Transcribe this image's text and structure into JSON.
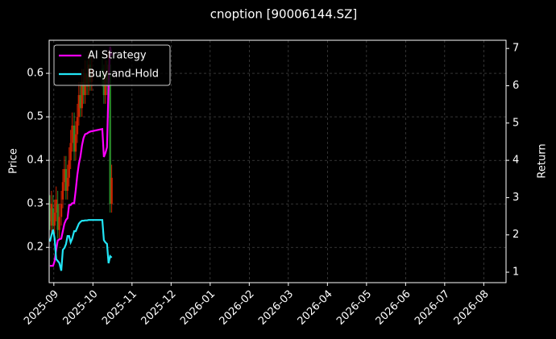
{
  "chart_data": {
    "type": "candlestick_returns",
    "title": "cnoption [90006144.SZ]",
    "ylabel": "Price",
    "y2label": "Return",
    "x": [
      -0.1,
      -0.06,
      -0.02,
      0.02,
      0.06,
      0.1,
      0.14,
      0.19,
      0.23,
      0.27,
      0.31,
      0.35,
      0.39,
      0.43,
      0.47,
      0.52,
      0.56,
      0.6,
      0.64,
      0.68,
      0.72,
      0.76,
      0.8,
      0.85,
      0.89,
      0.93,
      0.97,
      1.24,
      1.28,
      1.32,
      1.36,
      1.4,
      1.44,
      1.48
    ],
    "open": [
      0.29,
      0.25,
      0.29,
      0.25,
      0.28,
      0.3,
      0.24,
      0.27,
      0.31,
      0.35,
      0.38,
      0.33,
      0.36,
      0.4,
      0.44,
      0.48,
      0.42,
      0.46,
      0.5,
      0.55,
      0.52,
      0.58,
      0.55,
      0.6,
      0.57,
      0.62,
      0.58,
      0.61,
      0.59,
      0.55,
      0.6,
      0.57,
      0.62,
      0.3
    ],
    "high": [
      0.32,
      0.33,
      0.32,
      0.31,
      0.34,
      0.33,
      0.3,
      0.33,
      0.38,
      0.41,
      0.41,
      0.39,
      0.43,
      0.47,
      0.51,
      0.51,
      0.49,
      0.53,
      0.58,
      0.58,
      0.61,
      0.61,
      0.63,
      0.63,
      0.65,
      0.65,
      0.64,
      0.64,
      0.62,
      0.63,
      0.63,
      0.65,
      0.65,
      0.39
    ],
    "low": [
      0.24,
      0.23,
      0.23,
      0.23,
      0.26,
      0.22,
      0.22,
      0.25,
      0.29,
      0.33,
      0.31,
      0.31,
      0.34,
      0.38,
      0.42,
      0.4,
      0.4,
      0.44,
      0.48,
      0.5,
      0.5,
      0.53,
      0.53,
      0.55,
      0.55,
      0.56,
      0.56,
      0.57,
      0.53,
      0.53,
      0.55,
      0.55,
      0.28,
      0.28
    ],
    "close": [
      0.26,
      0.3,
      0.25,
      0.28,
      0.31,
      0.24,
      0.27,
      0.3,
      0.35,
      0.38,
      0.33,
      0.36,
      0.4,
      0.44,
      0.48,
      0.42,
      0.46,
      0.5,
      0.55,
      0.52,
      0.58,
      0.55,
      0.6,
      0.57,
      0.62,
      0.58,
      0.61,
      0.59,
      0.55,
      0.6,
      0.57,
      0.62,
      0.3,
      0.36
    ],
    "up_color": "#cc2200",
    "down_color": "#2a8a2a",
    "series": [
      {
        "name": "AI Strategy",
        "color": "#ff00ff",
        "axis": "y2",
        "values": [
          1.17,
          1.17,
          1.17,
          1.3,
          1.6,
          1.85,
          1.88,
          1.9,
          2.1,
          2.3,
          2.4,
          2.45,
          2.8,
          2.8,
          2.85,
          2.85,
          3.2,
          3.6,
          3.9,
          4.1,
          4.4,
          4.6,
          4.7,
          4.72,
          4.75,
          4.77,
          4.78,
          4.84,
          4.09,
          4.2,
          4.35,
          6.0,
          7.05,
          6.8
        ]
      },
      {
        "name": "Buy-and-Hold",
        "color": "#22e5f5",
        "axis": "y2",
        "values": [
          1.82,
          2.0,
          2.14,
          1.9,
          1.35,
          1.3,
          1.25,
          1.04,
          1.6,
          1.65,
          1.75,
          1.97,
          1.97,
          1.8,
          1.9,
          2.1,
          2.1,
          2.2,
          2.3,
          2.35,
          2.38,
          2.38,
          2.39,
          2.39,
          2.4,
          2.4,
          2.4,
          2.4,
          1.86,
          1.8,
          1.76,
          1.24,
          1.43,
          1.39
        ]
      }
    ],
    "xlim": [
      -0.12,
      11.57
    ],
    "xticks": [
      {
        "value": 0,
        "label": "2025-09"
      },
      {
        "value": 1,
        "label": "2025-10"
      },
      {
        "value": 2,
        "label": "2025-11"
      },
      {
        "value": 3,
        "label": "2025-12"
      },
      {
        "value": 4,
        "label": "2026-01"
      },
      {
        "value": 5,
        "label": "2026-02"
      },
      {
        "value": 6,
        "label": "2026-03"
      },
      {
        "value": 7,
        "label": "2026-04"
      },
      {
        "value": 8,
        "label": "2026-05"
      },
      {
        "value": 9,
        "label": "2026-06"
      },
      {
        "value": 10,
        "label": "2026-07"
      },
      {
        "value": 11,
        "label": "2026-08"
      }
    ],
    "ylim": [
      0.119,
      0.676
    ],
    "yticks": [
      0.2,
      0.3,
      0.4,
      0.5,
      0.6
    ],
    "y2lim": [
      0.72,
      7.22
    ],
    "y2ticks": [
      1,
      2,
      3,
      4,
      5,
      6,
      7
    ],
    "grid": true,
    "legend": "upper left"
  }
}
